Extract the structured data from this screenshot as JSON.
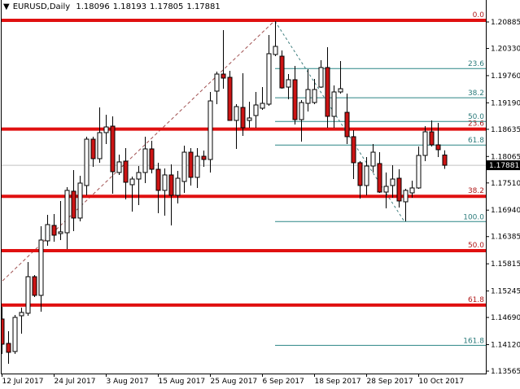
{
  "header": {
    "symbol_timeframe": "EURUSD,Daily",
    "open": "1.18096",
    "high": "1.18193",
    "low": "1.17805",
    "close": "1.17881"
  },
  "colors": {
    "bull_body": "#ffffff",
    "bear_body": "#cc1414",
    "candle_outline": "#000000",
    "fib_major": "#e01010",
    "fib_minor": "#2a8585",
    "fib_major_label": "#b01818",
    "fib_minor_label": "#2a7a7a",
    "trendline_major": "#a05050",
    "trendline_minor": "#3f7f7f",
    "price_line": "#c0c0c0",
    "price_label_bg": "#000000"
  },
  "chart_data": {
    "type": "candlestick",
    "title": "EURUSD,Daily",
    "y_axis": {
      "position": "right",
      "range": [
        1.1342,
        1.2133
      ],
      "ticks": [
        "1.20885",
        "1.20330",
        "1.19760",
        "1.19190",
        "1.18635",
        "1.18065",
        "1.17510",
        "1.16940",
        "1.16385",
        "1.15815",
        "1.15245",
        "1.14690",
        "1.14120",
        "1.13565"
      ]
    },
    "x_axis": {
      "ticks": [
        {
          "bar": 0,
          "label": "12 Jul 2017"
        },
        {
          "bar": 8,
          "label": "24 Jul 2017"
        },
        {
          "bar": 16,
          "label": "3 Aug 2017"
        },
        {
          "bar": 24,
          "label": "15 Aug 2017"
        },
        {
          "bar": 32,
          "label": "25 Aug 2017"
        },
        {
          "bar": 40,
          "label": "6 Sep 2017"
        },
        {
          "bar": 48,
          "label": "18 Sep 2017"
        },
        {
          "bar": 56,
          "label": "28 Sep 2017"
        },
        {
          "bar": 64,
          "label": "10 Oct 2017"
        }
      ]
    },
    "current_price": "1.17881",
    "ohlc": [
      [
        1.14658,
        1.14914,
        1.13925,
        1.14129
      ],
      [
        1.14146,
        1.14402,
        1.1372,
        1.13959
      ],
      [
        1.13976,
        1.14743,
        1.13925,
        1.14692
      ],
      [
        1.14726,
        1.14897,
        1.14351,
        1.14795
      ],
      [
        1.14778,
        1.15852,
        1.14726,
        1.15545
      ],
      [
        1.15545,
        1.15579,
        1.15119,
        1.15153
      ],
      [
        1.15153,
        1.16603,
        1.14812,
        1.16313
      ],
      [
        1.16296,
        1.16842,
        1.16193,
        1.16637
      ],
      [
        1.1662,
        1.16859,
        1.16279,
        1.16415
      ],
      [
        1.16449,
        1.17132,
        1.16313,
        1.16484
      ],
      [
        1.16466,
        1.17422,
        1.16125,
        1.17354
      ],
      [
        1.17337,
        1.1778,
        1.16501,
        1.16774
      ],
      [
        1.16774,
        1.17661,
        1.16705,
        1.17507
      ],
      [
        1.17456,
        1.1848,
        1.17251,
        1.18428
      ],
      [
        1.18428,
        1.1848,
        1.17848,
        1.18019
      ],
      [
        1.18019,
        1.19094,
        1.17934,
        1.18565
      ],
      [
        1.18565,
        1.1894,
        1.18326,
        1.18684
      ],
      [
        1.18701,
        1.18906,
        1.17285,
        1.17746
      ],
      [
        1.17729,
        1.18104,
        1.17678,
        1.17951
      ],
      [
        1.17968,
        1.18241,
        1.17166,
        1.17524
      ],
      [
        1.17473,
        1.17644,
        1.1691,
        1.17592
      ],
      [
        1.17592,
        1.17865,
        1.17046,
        1.17729
      ],
      [
        1.17729,
        1.1848,
        1.17507,
        1.18224
      ],
      [
        1.18224,
        1.18394,
        1.17712,
        1.17797
      ],
      [
        1.17797,
        1.17934,
        1.16876,
        1.17354
      ],
      [
        1.17354,
        1.17814,
        1.16825,
        1.17678
      ],
      [
        1.17678,
        1.17899,
        1.1662,
        1.17251
      ],
      [
        1.17251,
        1.17763,
        1.17081,
        1.17609
      ],
      [
        1.17541,
        1.18292,
        1.17302,
        1.18155
      ],
      [
        1.18155,
        1.18241,
        1.17456,
        1.17627
      ],
      [
        1.17627,
        1.18241,
        1.17405,
        1.1807
      ],
      [
        1.1807,
        1.1819,
        1.17848,
        1.18002
      ],
      [
        1.18002,
        1.19418,
        1.17729,
        1.1923
      ],
      [
        1.19435,
        1.19844,
        1.19162,
        1.19793
      ],
      [
        1.19793,
        1.20714,
        1.19486,
        1.19708
      ],
      [
        1.19725,
        1.19861,
        1.18821,
        1.18821
      ],
      [
        1.18821,
        1.19162,
        1.18224,
        1.19111
      ],
      [
        1.19094,
        1.1981,
        1.18497,
        1.18667
      ],
      [
        1.18821,
        1.19213,
        1.18667,
        1.18872
      ],
      [
        1.18923,
        1.19418,
        1.18667,
        1.19145
      ],
      [
        1.19077,
        1.1952,
        1.19043,
        1.19179
      ],
      [
        1.19162,
        1.20612,
        1.19128,
        1.2022
      ],
      [
        1.20203,
        1.209,
        1.20168,
        1.20373
      ],
      [
        1.20168,
        1.20288,
        1.19486,
        1.19503
      ],
      [
        1.1952,
        1.19793,
        1.19264,
        1.19674
      ],
      [
        1.19674,
        1.19964,
        1.18735,
        1.18838
      ],
      [
        1.18838,
        1.19247,
        1.18377,
        1.19196
      ],
      [
        1.19179,
        1.19896,
        1.19008,
        1.19469
      ],
      [
        1.19196,
        1.19691,
        1.19162,
        1.19469
      ],
      [
        1.1952,
        1.20083,
        1.19503,
        1.1993
      ],
      [
        1.1993,
        1.20356,
        1.18667,
        1.18906
      ],
      [
        1.18906,
        1.19554,
        1.18667,
        1.19418
      ],
      [
        1.19418,
        1.20066,
        1.19384,
        1.19486
      ],
      [
        1.18991,
        1.19384,
        1.18326,
        1.1848
      ],
      [
        1.1848,
        1.18616,
        1.17592,
        1.17934
      ],
      [
        1.17934,
        1.17968,
        1.17183,
        1.17456
      ],
      [
        1.17456,
        1.18053,
        1.17251,
        1.17865
      ],
      [
        1.17865,
        1.18326,
        1.17729,
        1.18155
      ],
      [
        1.17917,
        1.18155,
        1.17302,
        1.17319
      ],
      [
        1.17319,
        1.17729,
        1.16978,
        1.17439
      ],
      [
        1.17456,
        1.17882,
        1.172,
        1.17592
      ],
      [
        1.17609,
        1.17797,
        1.16995,
        1.17132
      ],
      [
        1.17115,
        1.17388,
        1.16705,
        1.17354
      ],
      [
        1.17302,
        1.17558,
        1.172,
        1.17405
      ],
      [
        1.17405,
        1.18275,
        1.17388,
        1.18087
      ],
      [
        1.18087,
        1.18701,
        1.17968,
        1.18582
      ],
      [
        1.18582,
        1.18821,
        1.18275,
        1.18309
      ],
      [
        1.18309,
        1.1877,
        1.18053,
        1.18207
      ],
      [
        1.18096,
        1.18193,
        1.17805,
        1.17881
      ]
    ],
    "fibonacci": [
      {
        "style": "major",
        "high": 1.2092,
        "low": 1.1126,
        "trend_from_bar": 0,
        "trend_to_bar": 42,
        "levels": [
          {
            "ratio": 0.0,
            "label": "0.0"
          },
          {
            "ratio": 0.236,
            "label": "23.6"
          },
          {
            "ratio": 0.382,
            "label": "38.2"
          },
          {
            "ratio": 0.5,
            "label": "50.0"
          },
          {
            "ratio": 0.618,
            "label": "61.8"
          }
        ]
      },
      {
        "style": "minor",
        "high": 1.209,
        "low": 1.167,
        "from_bar": 42,
        "to_bar": 62,
        "levels": [
          {
            "ratio": 0.236,
            "label": "23.6"
          },
          {
            "ratio": 0.382,
            "label": "38.2"
          },
          {
            "ratio": 0.5,
            "label": "50.0"
          },
          {
            "ratio": 0.618,
            "label": "61.8"
          },
          {
            "ratio": 1.0,
            "label": "100.0"
          },
          {
            "ratio": 1.618,
            "label": "161.8"
          }
        ]
      }
    ]
  }
}
